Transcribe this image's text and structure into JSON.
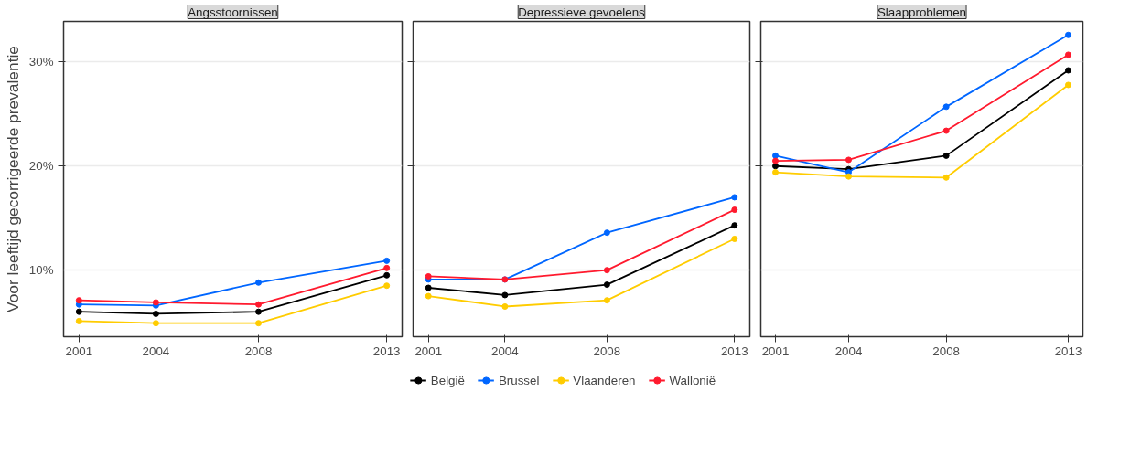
{
  "chart_data": [
    {
      "type": "line",
      "title": "Angsstoornissen",
      "ylabel": "Voor leeftijd gecorrigeerde prevalentie",
      "x": [
        2001,
        2004,
        2008,
        2013
      ],
      "xlim": [
        2000.4,
        2013.6
      ],
      "xticks": [
        2001,
        2004,
        2008,
        2013
      ],
      "ylim": [
        3.6,
        33.9
      ],
      "yticks": [
        {
          "value": 10,
          "label": "10%"
        },
        {
          "value": 20,
          "label": "20%"
        },
        {
          "value": 30,
          "label": "30%"
        }
      ],
      "grid": "y",
      "marker": "circle",
      "legend": "bottom",
      "series": [
        {
          "name": "België",
          "color": "#000000",
          "values": [
            6.0,
            5.8,
            6.0,
            9.5
          ]
        },
        {
          "name": "Brussel",
          "color": "#0066ff",
          "values": [
            6.7,
            6.6,
            8.8,
            10.9
          ]
        },
        {
          "name": "Vlaanderen",
          "color": "#ffcc00",
          "values": [
            5.1,
            4.9,
            4.9,
            8.5
          ]
        },
        {
          "name": "Wallonië",
          "color": "#ff1a2e",
          "values": [
            7.1,
            6.9,
            6.7,
            10.2
          ]
        }
      ]
    },
    {
      "type": "line",
      "title": "Depressieve gevoelens",
      "x": [
        2001,
        2004,
        2008,
        2013
      ],
      "xlim": [
        2000.4,
        2013.6
      ],
      "xticks": [
        2001,
        2004,
        2008,
        2013
      ],
      "ylim": [
        3.6,
        33.9
      ],
      "yticks": [
        10,
        20,
        30
      ],
      "grid": "y",
      "marker": "circle",
      "tick_labels": "x",
      "series": [
        {
          "color": "#000000",
          "values": [
            8.3,
            7.6,
            8.6,
            14.3
          ]
        },
        {
          "color": "#0066ff",
          "values": [
            9.1,
            9.1,
            13.6,
            17.0
          ]
        },
        {
          "color": "#ffcc00",
          "values": [
            7.5,
            6.5,
            7.1,
            13.0
          ]
        },
        {
          "color": "#ff1a2e",
          "values": [
            9.4,
            9.1,
            10.0,
            15.8
          ]
        }
      ]
    },
    {
      "type": "line",
      "title": "Slaapproblemen",
      "x": [
        2001,
        2004,
        2008,
        2013
      ],
      "xlim": [
        2000.4,
        2013.6
      ],
      "xticks": [
        2001,
        2004,
        2008,
        2013
      ],
      "ylim": [
        3.6,
        33.9
      ],
      "yticks": [
        10,
        20,
        30
      ],
      "grid": "y",
      "marker": "circle",
      "tick_labels": "x",
      "series": [
        {
          "color": "#000000",
          "values": [
            20.0,
            19.7,
            21.0,
            29.2
          ]
        },
        {
          "color": "#0066ff",
          "values": [
            21.0,
            19.4,
            25.7,
            32.6
          ]
        },
        {
          "color": "#ffcc00",
          "values": [
            19.4,
            19.0,
            18.9,
            27.8
          ]
        },
        {
          "color": "#ff1a2e",
          "values": [
            20.5,
            20.6,
            23.4,
            30.7
          ]
        }
      ]
    }
  ]
}
